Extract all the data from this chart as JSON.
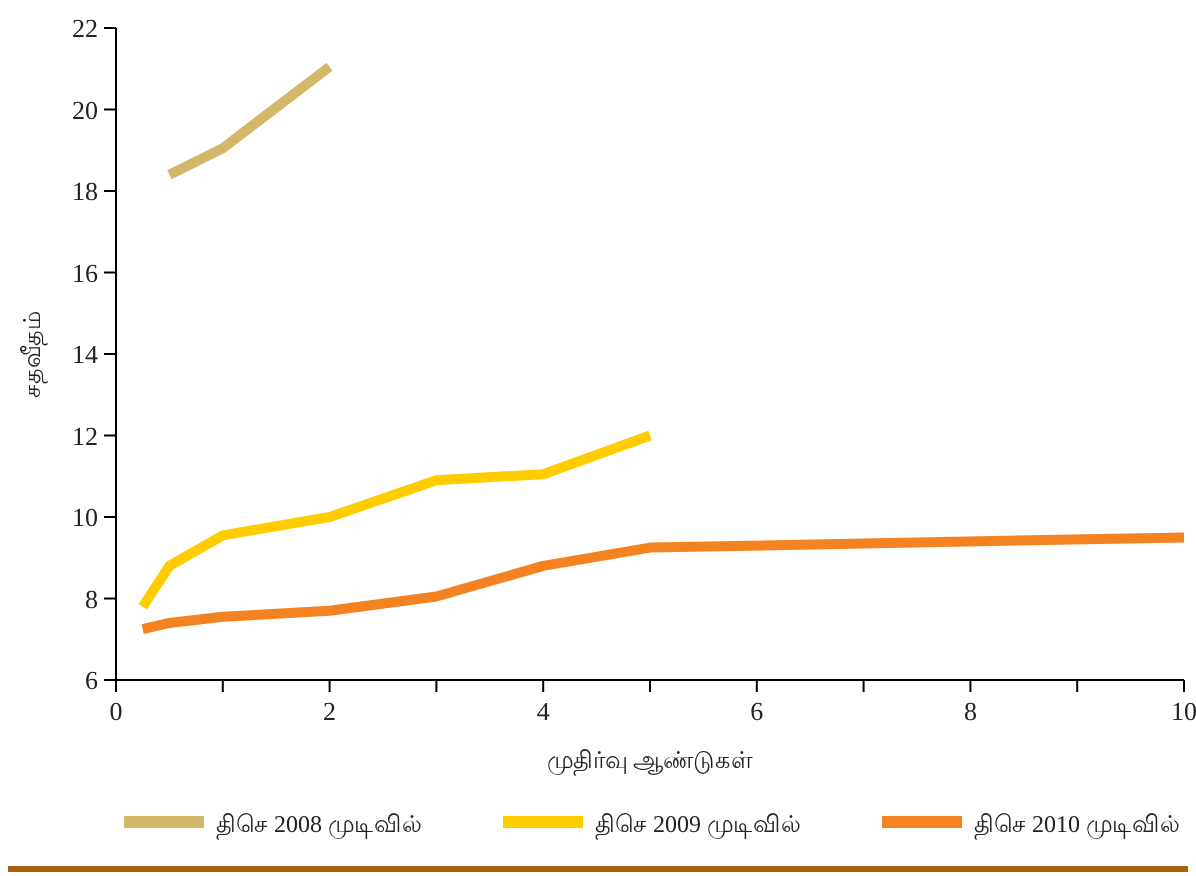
{
  "chart_data": {
    "type": "line",
    "xlabel": "முதிர்வு ஆண்டுகள்",
    "ylabel": "சதவீதம்",
    "xlim": [
      0,
      10
    ],
    "ylim": [
      6,
      22
    ],
    "xticks": [
      0,
      {
        "value": 1,
        "label": null
      },
      2,
      {
        "value": 3,
        "label": null
      },
      4,
      {
        "value": 5,
        "label": null
      },
      6,
      {
        "value": 7,
        "label": null
      },
      8,
      {
        "value": 9,
        "label": null
      },
      10
    ],
    "yticks": [
      6,
      8,
      10,
      12,
      14,
      16,
      18,
      20,
      22
    ],
    "legend": "bottom",
    "grid": false,
    "marker": "none",
    "line_style": "solid",
    "series": [
      {
        "name": "திசெ 2008 முடிவில்",
        "color": "#d4b86a",
        "x": [
          0.5,
          1,
          2
        ],
        "values": [
          18.4,
          19.05,
          21.05
        ]
      },
      {
        "name": "திசெ 2009 முடிவில்",
        "color": "#ffcc00",
        "x": [
          0.25,
          0.5,
          1,
          2,
          3,
          4,
          5
        ],
        "values": [
          7.8,
          8.8,
          9.55,
          10.0,
          10.9,
          11.05,
          12.0
        ]
      },
      {
        "name": "திசெ 2010 முடிவில்",
        "color": "#f58220",
        "x": [
          0.25,
          0.5,
          1,
          2,
          3,
          4,
          5,
          10
        ],
        "values": [
          7.25,
          7.4,
          7.55,
          7.7,
          8.05,
          8.8,
          9.25,
          9.5
        ]
      }
    ]
  }
}
